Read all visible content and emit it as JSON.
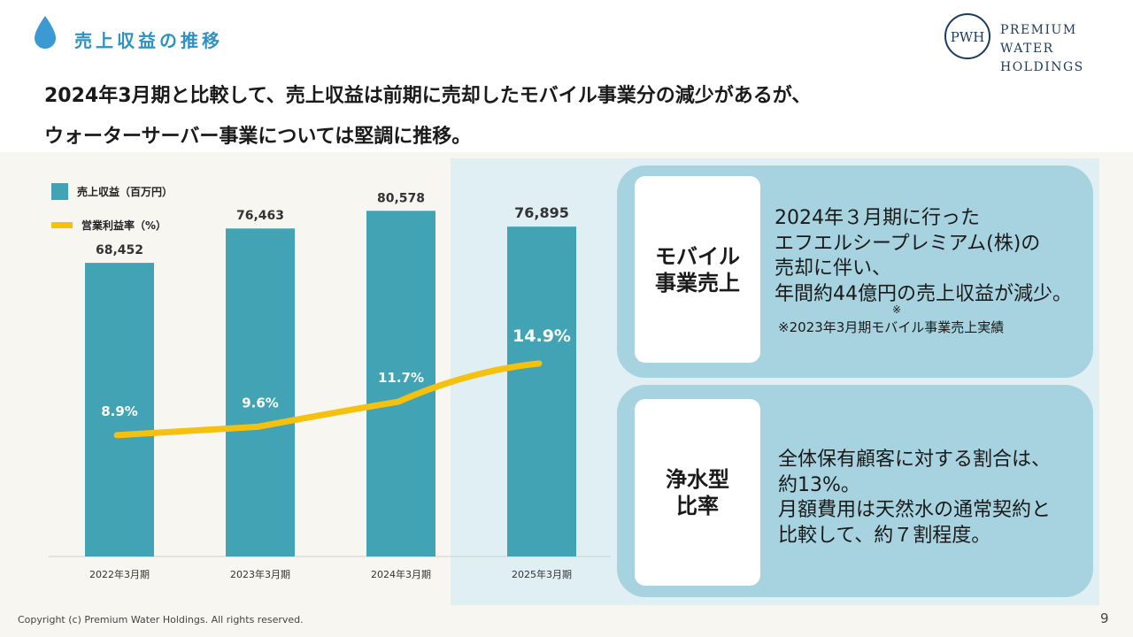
{
  "header": {
    "section_title": "売上収益の推移",
    "headline_line1": "2024年3月期と比較して、売上収益は前期に売却したモバイル事業分の減少があるが、",
    "headline_line2": "ウォーターサーバー事業については堅調に推移。",
    "logo_line1": "PREMIUM WATER",
    "logo_line2": "HOLDINGS",
    "logo_mark": "PWH"
  },
  "legend": {
    "bar": "売上収益（百万円）",
    "line": "営業利益率（%）"
  },
  "chart_data": {
    "type": "bar",
    "categories": [
      "2022年3月期",
      "2023年3月期",
      "2024年3月期",
      "2025年3月期"
    ],
    "series": [
      {
        "name": "売上収益（百万円）",
        "type": "bar",
        "values": [
          68452,
          76463,
          80578,
          76895
        ],
        "labels": [
          "68,452",
          "76,463",
          "80,578",
          "76,895"
        ],
        "color": "#42a3b4"
      },
      {
        "name": "営業利益率（%）",
        "type": "line",
        "values": [
          8.9,
          9.6,
          11.7,
          14.9
        ],
        "labels": [
          "8.9%",
          "9.6%",
          "11.7%",
          "14.9%"
        ],
        "color": "#f5c10e"
      }
    ],
    "ylim": [
      0,
      86000
    ],
    "rate_range": [
      0,
      20
    ],
    "legend_position": "top-left",
    "grid": false
  },
  "cards": [
    {
      "label": "モバイル\n事業売上",
      "text": "2024年３月期に行った\nエフエルシープレミアム(株)の\n売却に伴い、\n年間約44億円の売上収益が減少。",
      "mark": "※",
      "note": "※2023年3月期モバイル事業売上実績"
    },
    {
      "label": "浄水型\n比率",
      "text": "全体保有顧客に対する割合は、\n約13%。\n月額費用は天然水の通常契約と\n比較して、約７割程度。"
    }
  ],
  "footer": {
    "copyright": "Copyright (c) Premium Water Holdings. All rights reserved.",
    "page": "9"
  },
  "colors": {
    "accent": "#2c93c1",
    "bar": "#42a3b4",
    "line": "#f5c10e",
    "card": "#a6d3df",
    "panel": "#e0eff4"
  }
}
